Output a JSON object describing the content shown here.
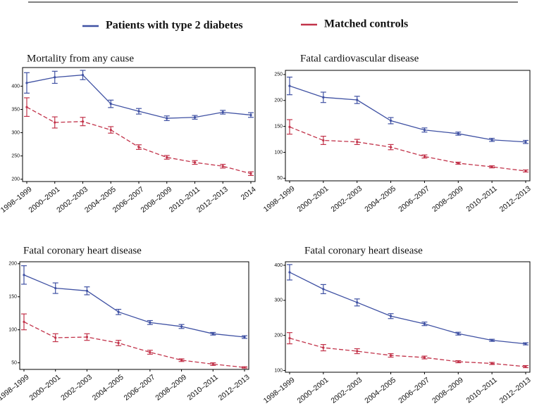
{
  "legend": [
    {
      "name": "Patients with type 2 diabetes",
      "color": "#3f51a3",
      "dashed": false
    },
    {
      "name": "Matched controls",
      "color": "#c2334a",
      "dashed": true
    }
  ],
  "chart_data": [
    {
      "type": "line",
      "title": "Mortality from any cause",
      "categories": [
        "1998–1999",
        "2000–2001",
        "2002–2003",
        "2004–2005",
        "2006–2007",
        "2008–2009",
        "2010–2011",
        "2012–2013",
        "2014"
      ],
      "series": [
        {
          "values": [
            407,
            419,
            424,
            362,
            346,
            331,
            333,
            344,
            338
          ],
          "errors": [
            22,
            13,
            10,
            8,
            6,
            5,
            4,
            4,
            5
          ]
        },
        {
          "values": [
            355,
            322,
            324,
            306,
            269,
            247,
            236,
            228,
            212
          ],
          "errors": [
            20,
            12,
            9,
            7,
            5,
            4,
            4,
            4,
            4
          ]
        }
      ],
      "ylim": [
        195,
        440
      ],
      "yticks": [
        200,
        250,
        300,
        350,
        400
      ]
    },
    {
      "type": "line",
      "title": "Fatal cardiovascular disease",
      "categories": [
        "1998–1999",
        "2000–2001",
        "2002–2003",
        "2004–2005",
        "2006–2007",
        "2008–2009",
        "2010–2011",
        "2012–2013"
      ],
      "series": [
        {
          "values": [
            228,
            206,
            201,
            161,
            143,
            136,
            124,
            120
          ],
          "errors": [
            17,
            10,
            7,
            6,
            4,
            3,
            3,
            3
          ]
        },
        {
          "values": [
            149,
            123,
            120,
            110,
            92,
            79,
            72,
            64
          ],
          "errors": [
            14,
            8,
            5,
            5,
            3,
            2,
            2,
            2
          ]
        }
      ],
      "ylim": [
        45,
        258
      ],
      "yticks": [
        50,
        100,
        150,
        200,
        250
      ]
    },
    {
      "type": "line",
      "title": "Fatal coronary heart disease",
      "categories": [
        "1998–1999",
        "2000–2001",
        "2002–2003",
        "2004–2005",
        "2006–2007",
        "2008–2009",
        "2010–2011",
        "2012–2013"
      ],
      "series": [
        {
          "values": [
            183,
            163,
            159,
            127,
            111,
            105,
            94,
            89
          ],
          "errors": [
            14,
            8,
            6,
            4,
            3,
            3,
            2,
            2
          ]
        },
        {
          "values": [
            112,
            88,
            89,
            80,
            66,
            54,
            48,
            43
          ],
          "errors": [
            12,
            6,
            5,
            4,
            3,
            2,
            2,
            1
          ]
        }
      ],
      "ylim": [
        40,
        203
      ],
      "yticks": [
        50,
        100,
        150,
        200
      ]
    },
    {
      "type": "line",
      "title": "Fatal coronary heart disease",
      "categories": [
        "1998–1999",
        "2000–2001",
        "2002–2003",
        "2004–2005",
        "2006–2007",
        "2008–2009",
        "2010–2011",
        "2012–2013"
      ],
      "series": [
        {
          "values": [
            380,
            332,
            294,
            255,
            233,
            205,
            186,
            176
          ],
          "errors": [
            22,
            13,
            10,
            7,
            5,
            4,
            3,
            3
          ]
        },
        {
          "values": [
            192,
            165,
            155,
            143,
            137,
            125,
            120,
            111
          ],
          "errors": [
            16,
            9,
            7,
            5,
            4,
            3,
            3,
            3
          ]
        }
      ],
      "ylim": [
        95,
        410
      ],
      "yticks": [
        100,
        200,
        300,
        400
      ]
    }
  ]
}
